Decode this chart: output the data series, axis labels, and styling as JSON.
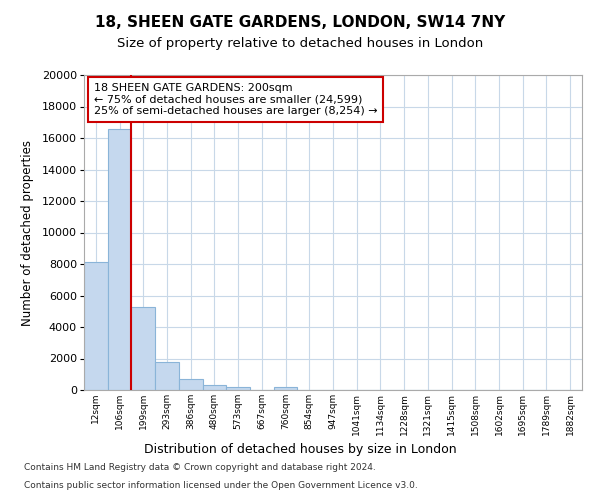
{
  "title1": "18, SHEEN GATE GARDENS, LONDON, SW14 7NY",
  "title2": "Size of property relative to detached houses in London",
  "xlabel": "Distribution of detached houses by size in London",
  "ylabel": "Number of detached properties",
  "footer1": "Contains HM Land Registry data © Crown copyright and database right 2024.",
  "footer2": "Contains public sector information licensed under the Open Government Licence v3.0.",
  "bar_labels": [
    "12sqm",
    "106sqm",
    "199sqm",
    "293sqm",
    "386sqm",
    "480sqm",
    "573sqm",
    "667sqm",
    "760sqm",
    "854sqm",
    "947sqm",
    "1041sqm",
    "1134sqm",
    "1228sqm",
    "1321sqm",
    "1415sqm",
    "1508sqm",
    "1602sqm",
    "1695sqm",
    "1789sqm",
    "1882sqm"
  ],
  "bar_heights": [
    8100,
    16600,
    5300,
    1800,
    700,
    300,
    200,
    0,
    200,
    0,
    0,
    0,
    0,
    0,
    0,
    0,
    0,
    0,
    0,
    0,
    0
  ],
  "bar_color": "#c5d8ee",
  "bar_edge_color": "#8ab4d8",
  "red_line_x": 2,
  "annotation_line1": "18 SHEEN GATE GARDENS: 200sqm",
  "annotation_line2": "← 75% of detached houses are smaller (24,599)",
  "annotation_line3": "25% of semi-detached houses are larger (8,254) →",
  "annotation_box_color": "#ffffff",
  "annotation_border_color": "#cc0000",
  "red_line_color": "#cc0000",
  "ylim": [
    0,
    20000
  ],
  "yticks": [
    0,
    2000,
    4000,
    6000,
    8000,
    10000,
    12000,
    14000,
    16000,
    18000,
    20000
  ],
  "background_color": "#ffffff",
  "grid_color": "#c8d8e8",
  "title1_fontsize": 11,
  "title2_fontsize": 9.5
}
